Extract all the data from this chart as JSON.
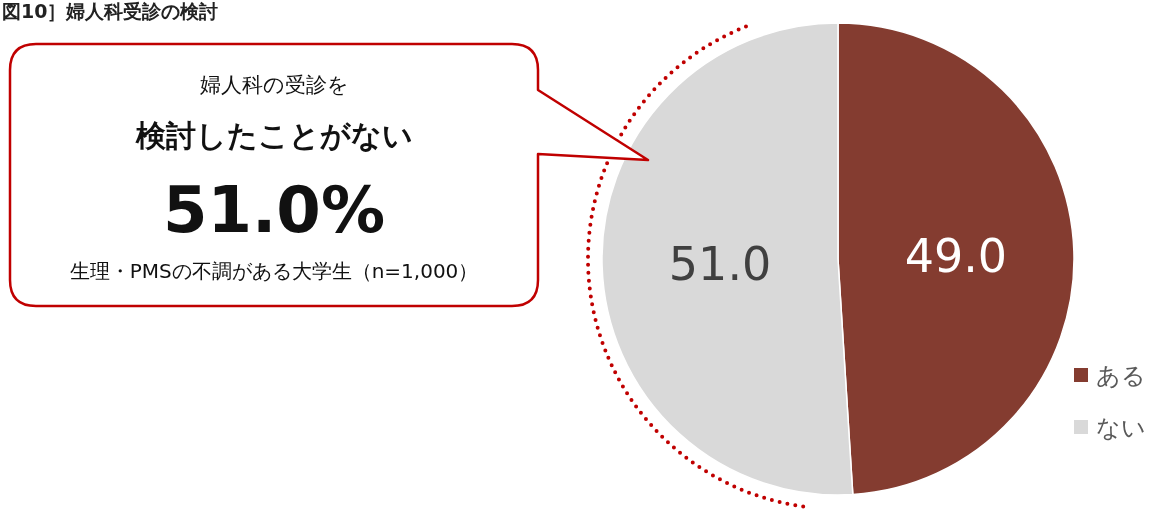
{
  "chart_data": {
    "type": "pie",
    "title": "図10］婦人科受診の検討",
    "categories": [
      "ある",
      "ない"
    ],
    "values": [
      49.0,
      51.0
    ],
    "colors": [
      "#843c30",
      "#d9d9d9"
    ],
    "value_labels": [
      "49.0",
      "51.0"
    ],
    "legend": "bottom right",
    "annotations": [
      "婦人科の受診を",
      "検討したことがない",
      "51.0%",
      "生理・PMSの不調がある大学生（n=1,000）"
    ]
  }
}
